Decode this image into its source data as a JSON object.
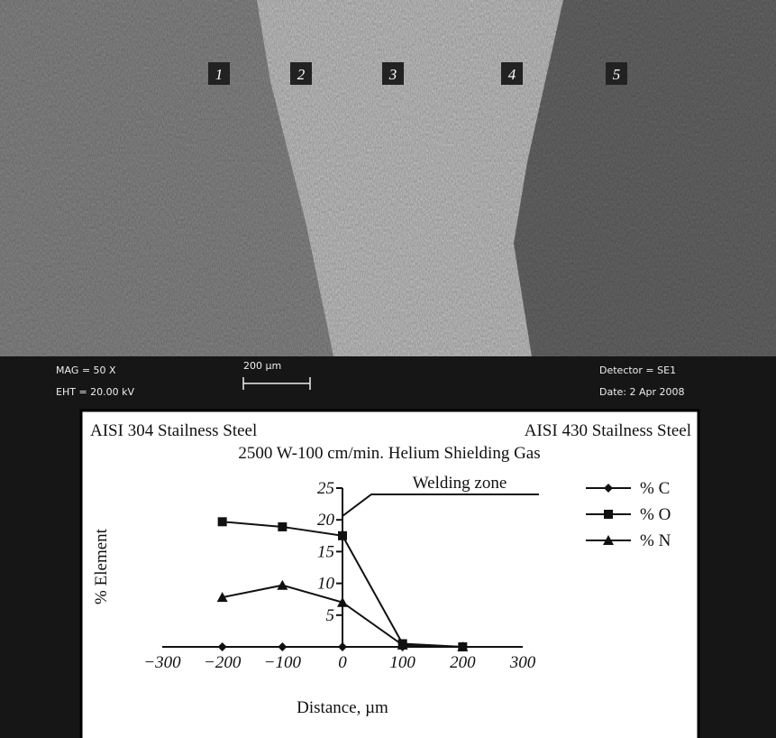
{
  "micrograph": {
    "zones": [
      "1",
      "2",
      "3",
      "4",
      "5"
    ],
    "mag": "MAG =   50 X",
    "eht": "EHT = 20.00 kV",
    "scale": "200 µm",
    "detector": "Detector = SE1",
    "date": "Date: 2 Apr 2008"
  },
  "chart_data": {
    "type": "line",
    "title_left": "AISI 304 Stailness Steel",
    "title_right": "AISI 430 Stailness Steel",
    "subtitle": "2500 W-100 cm/min. Helium Shielding Gas",
    "annotation": "Welding zone",
    "x_label": "Distance, µm",
    "y_label": "% Element",
    "x": [
      -200,
      -100,
      0,
      100,
      200
    ],
    "series": [
      {
        "name": "% C",
        "color": "#111111",
        "marker": "diamond",
        "values": [
          0,
          0,
          0,
          0,
          0
        ]
      },
      {
        "name": "% O",
        "color": "#111111",
        "marker": "square",
        "values": [
          19.7,
          18.9,
          17.5,
          0.5,
          0
        ]
      },
      {
        "name": "% N",
        "color": "#111111",
        "marker": "triangle",
        "values": [
          7.8,
          9.7,
          7,
          0.3,
          0
        ]
      }
    ],
    "xlim": [
      -300,
      300
    ],
    "xticks": [
      {
        "value": -300,
        "label": "−300"
      },
      {
        "value": -200,
        "label": "−200"
      },
      {
        "value": -100,
        "label": "−100"
      },
      0,
      100,
      200,
      300
    ],
    "ylim": [
      0,
      25
    ],
    "yticks": [
      5,
      10,
      15,
      20,
      25
    ],
    "legend": "right",
    "grid": false
  }
}
